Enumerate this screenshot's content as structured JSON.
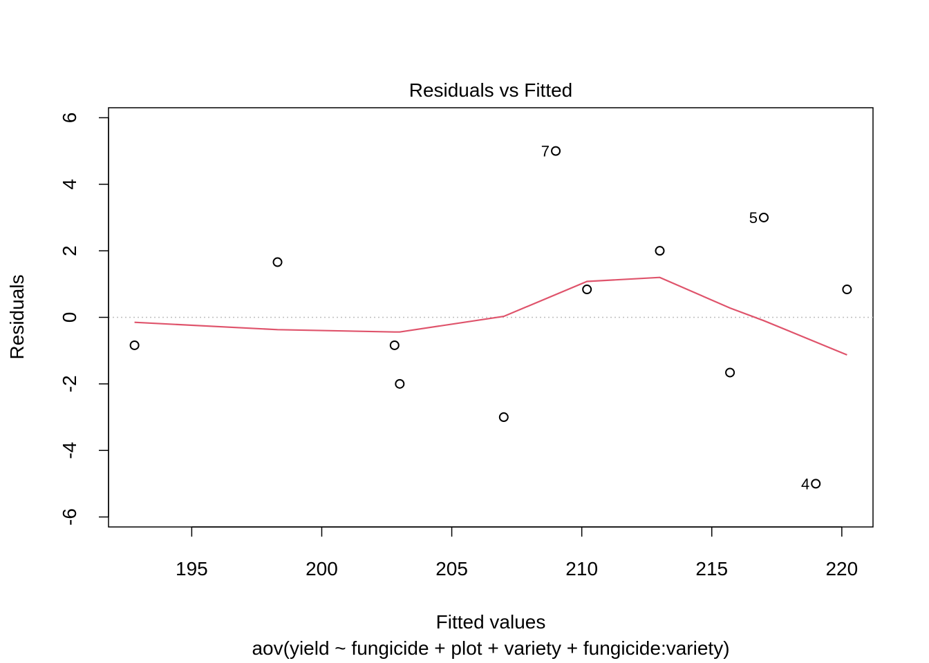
{
  "chart_data": {
    "type": "scatter",
    "title": "Residuals vs Fitted",
    "xlabel": "Fitted values",
    "subtitle": "aov(yield ~ fungicide + plot + variety + fungicide:variety)",
    "ylabel": "Residuals",
    "xlim": [
      191.8,
      221.2
    ],
    "ylim": [
      -6.3,
      6.3
    ],
    "xticks": [
      "195",
      "200",
      "205",
      "210",
      "215",
      "220"
    ],
    "yticks": [
      "-6",
      "-4",
      "-2",
      "0",
      "2",
      "4",
      "6"
    ],
    "points": [
      {
        "x": 192.8,
        "y": -0.84,
        "label": ""
      },
      {
        "x": 198.3,
        "y": 1.66,
        "label": ""
      },
      {
        "x": 202.8,
        "y": -0.84,
        "label": ""
      },
      {
        "x": 203.0,
        "y": -2.0,
        "label": ""
      },
      {
        "x": 207.0,
        "y": -3.0,
        "label": ""
      },
      {
        "x": 209.0,
        "y": 5.0,
        "label": "7"
      },
      {
        "x": 210.2,
        "y": 0.84,
        "label": ""
      },
      {
        "x": 213.0,
        "y": 2.0,
        "label": ""
      },
      {
        "x": 215.7,
        "y": -1.66,
        "label": ""
      },
      {
        "x": 217.0,
        "y": 3.0,
        "label": "5"
      },
      {
        "x": 219.0,
        "y": -5.0,
        "label": "4"
      },
      {
        "x": 220.2,
        "y": 0.84,
        "label": ""
      }
    ],
    "smooth_line": {
      "color": "#DF536B",
      "x": [
        192.8,
        198.3,
        202.8,
        203.0,
        207.0,
        210.2,
        213.0,
        215.7,
        217.0,
        220.2
      ],
      "y": [
        -0.15,
        -0.37,
        -0.44,
        -0.44,
        0.03,
        1.08,
        1.2,
        0.28,
        -0.1,
        -1.13
      ]
    },
    "reference_line": {
      "y": 0,
      "style": "dotted",
      "color": "#BEBEBE"
    },
    "grid": false
  }
}
